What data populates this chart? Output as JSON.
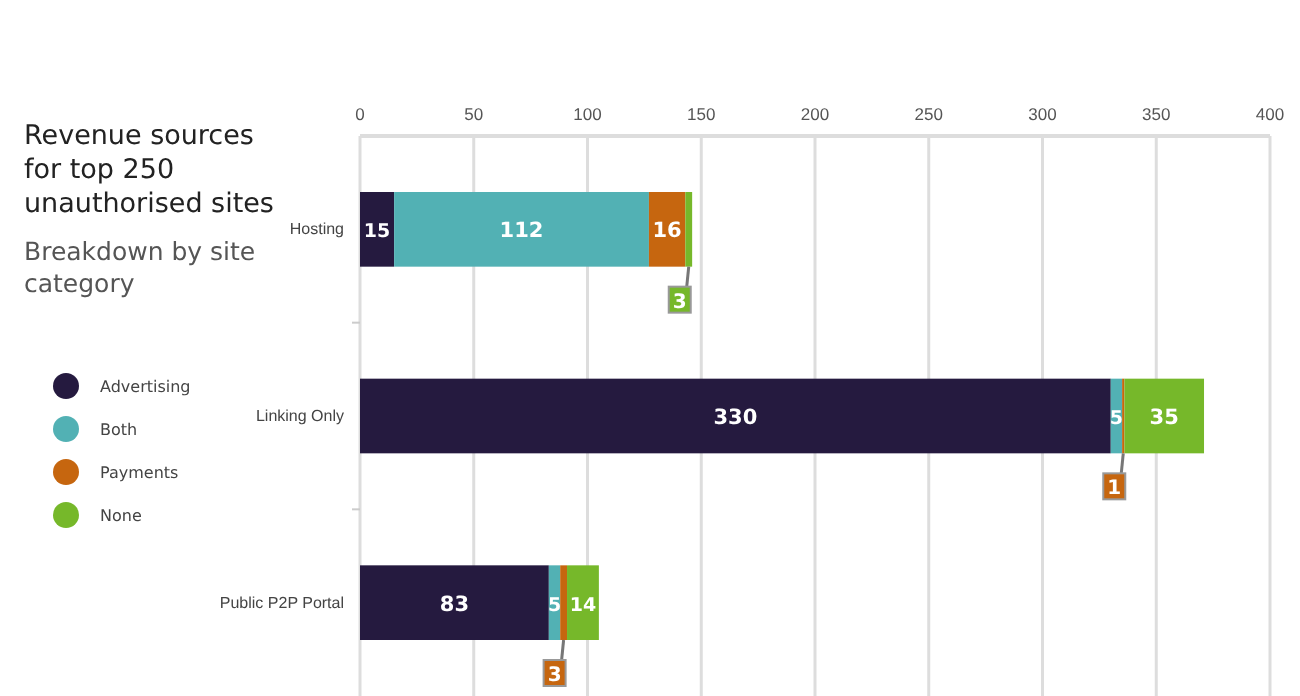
{
  "chart_data": {
    "type": "bar",
    "orientation": "horizontal",
    "stacked": true,
    "title": "Revenue sources for top 250 unauthorised sites",
    "subtitle": "Breakdown by site category",
    "categories": [
      "Hosting",
      "Linking Only",
      "Public P2P Portal"
    ],
    "series": [
      {
        "name": "Advertising",
        "color": "#251a3f",
        "values": [
          15,
          330,
          83
        ]
      },
      {
        "name": "Both",
        "color": "#52b1b4",
        "values": [
          112,
          5,
          5
        ]
      },
      {
        "name": "Payments",
        "color": "#c6660f",
        "values": [
          16,
          1,
          3
        ]
      },
      {
        "name": "None",
        "color": "#76b82a",
        "values": [
          3,
          35,
          14
        ]
      }
    ],
    "xlim": [
      0,
      400
    ],
    "xticks": [
      0,
      50,
      100,
      150,
      200,
      250,
      300,
      350,
      400
    ],
    "grid": "x",
    "legend": "left",
    "data_labels": true
  }
}
